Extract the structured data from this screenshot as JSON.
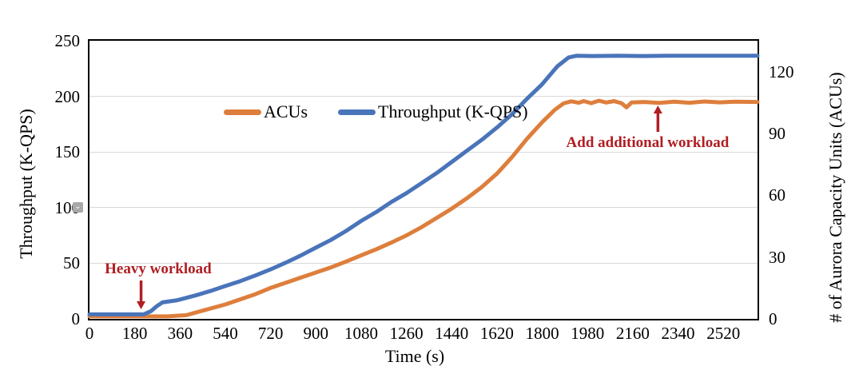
{
  "chart_data": {
    "type": "line",
    "title": "",
    "xlabel": "Time (s)",
    "ylabel_left": "Throughput (K-QPS)",
    "ylabel_right": "# of Aurora Capacity Units (ACUs)",
    "x_range": [
      0,
      2656
    ],
    "x_ticks": [
      0,
      180,
      360,
      540,
      720,
      900,
      1080,
      1260,
      1440,
      1620,
      1800,
      1980,
      2160,
      2340,
      2520
    ],
    "y_left_range": [
      0,
      250
    ],
    "y_left_ticks": [
      0,
      50,
      100,
      150,
      200,
      250
    ],
    "y_right_range": [
      0,
      135
    ],
    "y_right_ticks": [
      0,
      30,
      60,
      90,
      120
    ],
    "grid": "horizontal",
    "legend_position": "top-inside",
    "colors": {
      "grid": "#d9d9d9",
      "frame": "#000000",
      "annotation": "#b01e23"
    },
    "series": [
      {
        "name": "ACUs",
        "axis": "right",
        "color": "#de7e3c",
        "points": [
          [
            0,
            1.2
          ],
          [
            160,
            1.2
          ],
          [
            310,
            1.2
          ],
          [
            385,
            1.8
          ],
          [
            420,
            3
          ],
          [
            480,
            5
          ],
          [
            540,
            7
          ],
          [
            600,
            9.5
          ],
          [
            660,
            12
          ],
          [
            720,
            15
          ],
          [
            780,
            17.5
          ],
          [
            840,
            20
          ],
          [
            900,
            22.5
          ],
          [
            960,
            25
          ],
          [
            1020,
            27.8
          ],
          [
            1080,
            30.8
          ],
          [
            1140,
            33.8
          ],
          [
            1200,
            37
          ],
          [
            1260,
            40.5
          ],
          [
            1320,
            44.5
          ],
          [
            1380,
            49
          ],
          [
            1440,
            53.5
          ],
          [
            1500,
            58.5
          ],
          [
            1560,
            64
          ],
          [
            1620,
            70.5
          ],
          [
            1680,
            78.5
          ],
          [
            1740,
            87.5
          ],
          [
            1800,
            95.5
          ],
          [
            1850,
            101.5
          ],
          [
            1885,
            104.6
          ],
          [
            1915,
            105.6
          ],
          [
            1945,
            104.9
          ],
          [
            1965,
            105.7
          ],
          [
            1995,
            104.7
          ],
          [
            2025,
            105.9
          ],
          [
            2055,
            105
          ],
          [
            2085,
            105.7
          ],
          [
            2115,
            104.7
          ],
          [
            2135,
            102.7
          ],
          [
            2155,
            105
          ],
          [
            2205,
            105.3
          ],
          [
            2265,
            104.8
          ],
          [
            2325,
            105.4
          ],
          [
            2385,
            104.9
          ],
          [
            2445,
            105.5
          ],
          [
            2505,
            105.1
          ],
          [
            2565,
            105.4
          ],
          [
            2656,
            105.3
          ]
        ]
      },
      {
        "name": "Throughput (K-QPS)",
        "axis": "left",
        "color": "#4a74ba",
        "points": [
          [
            0,
            4
          ],
          [
            160,
            4
          ],
          [
            215,
            4
          ],
          [
            245,
            7
          ],
          [
            265,
            11
          ],
          [
            290,
            14.8
          ],
          [
            320,
            15.8
          ],
          [
            350,
            16.8
          ],
          [
            420,
            21
          ],
          [
            480,
            25
          ],
          [
            540,
            29.5
          ],
          [
            600,
            34
          ],
          [
            660,
            39
          ],
          [
            720,
            44.5
          ],
          [
            780,
            50.5
          ],
          [
            840,
            57
          ],
          [
            900,
            64
          ],
          [
            960,
            71
          ],
          [
            1020,
            79
          ],
          [
            1080,
            88
          ],
          [
            1140,
            96
          ],
          [
            1200,
            105
          ],
          [
            1260,
            113
          ],
          [
            1320,
            122
          ],
          [
            1380,
            131
          ],
          [
            1440,
            141
          ],
          [
            1500,
            151
          ],
          [
            1560,
            161
          ],
          [
            1620,
            172
          ],
          [
            1680,
            184
          ],
          [
            1740,
            198
          ],
          [
            1800,
            211
          ],
          [
            1860,
            227
          ],
          [
            1905,
            235
          ],
          [
            1935,
            236.5
          ],
          [
            2000,
            236.3
          ],
          [
            2100,
            236.6
          ],
          [
            2200,
            236.3
          ],
          [
            2300,
            236.6
          ],
          [
            2400,
            236.5
          ],
          [
            2500,
            236.6
          ],
          [
            2580,
            236.5
          ],
          [
            2656,
            236.6
          ]
        ]
      }
    ],
    "annotations": [
      {
        "text": "Heavy workload",
        "text_t": 273,
        "text_value": 44.5,
        "arrow": {
          "t": 205,
          "value_from": 34.5,
          "value_to": 8.6
        }
      },
      {
        "text": "Add additional workload",
        "text_t": 2219,
        "text_value": 158.4,
        "arrow": {
          "t": 2260,
          "value_from": 168.1,
          "value_to": 191.8
        }
      }
    ]
  },
  "overlay_icon": {
    "glyph": "⌄"
  }
}
